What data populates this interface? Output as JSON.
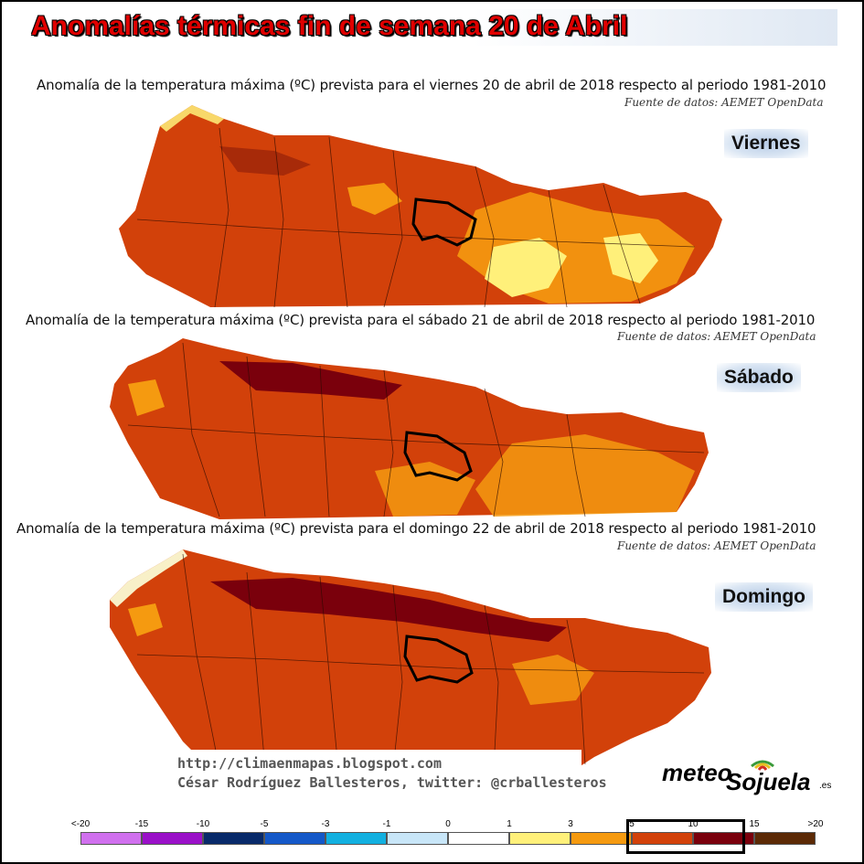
{
  "header": {
    "title": "Anomalías térmicas fin de semana 20 de Abril"
  },
  "panels": [
    {
      "title": "Anomalía de la temperatura máxima (ºC) prevista para el viernes 20 de abril de 2018 respecto al periodo 1981-2010",
      "source": "Fuente de datos: AEMET OpenData",
      "day": "Viernes"
    },
    {
      "title": "Anomalía de la temperatura máxima (ºC) prevista para el sábado 21 de abril de 2018 respecto al periodo 1981-2010",
      "source": "Fuente de datos: AEMET OpenData",
      "day": "Sábado"
    },
    {
      "title": "Anomalía de la temperatura máxima (ºC) prevista para el domingo 22 de abril de 2018 respecto al periodo 1981-2010",
      "source": "Fuente de datos: AEMET OpenData",
      "day": "Domingo"
    }
  ],
  "footer": {
    "url": "http://climaenmapas.blogspot.com",
    "author": "César Rodríguez Ballesteros, twitter: @crballesteros"
  },
  "logo": {
    "text_a": "meteo",
    "text_b": "Sojuela",
    "suffix": ".es"
  },
  "legend": {
    "ticks": [
      "<-20",
      "-15",
      "-10",
      "-5",
      "-3",
      "-1",
      "0",
      "1",
      "3",
      "5",
      "10",
      "15",
      ">20"
    ],
    "colors": [
      "#d070ee",
      "#9a10c8",
      "#082a6a",
      "#1458c8",
      "#12b0e0",
      "#c8e6f8",
      "#ffffff",
      "#fff07a",
      "#f59a10",
      "#d2410a",
      "#7a000c",
      "#5c2a06"
    ],
    "highlight": "5 – 15"
  },
  "map_colors": {
    "base": "#d2410a",
    "warm": "#f59a10",
    "light": "#fff07a",
    "dark": "#7a000c",
    "sea_coast": "#c8e6f8",
    "border": "#000000"
  }
}
